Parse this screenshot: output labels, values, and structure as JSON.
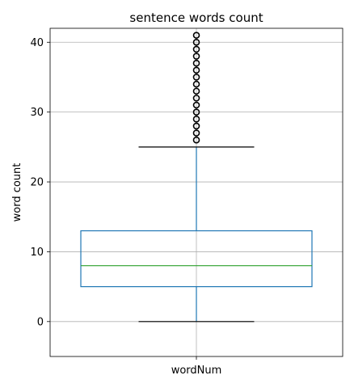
{
  "chart_data": {
    "type": "box",
    "title": "sentence words count",
    "xlabel": "",
    "ylabel": "word count",
    "categories": [
      "wordNum"
    ],
    "ylim": [
      -5,
      42
    ],
    "yticks": [
      0,
      10,
      20,
      30,
      40
    ],
    "grid": true,
    "boxes": [
      {
        "name": "wordNum",
        "whislo": 0,
        "q1": 5,
        "med": 8,
        "q3": 13,
        "whishi": 25,
        "fliers": [
          26,
          27,
          28,
          29,
          30,
          31,
          32,
          33,
          34,
          35,
          36,
          37,
          38,
          39,
          40,
          41
        ]
      }
    ],
    "colors": {
      "box": "#1f77b4",
      "median": "#2ca02c",
      "cap": "#000000",
      "flier": "#000000"
    }
  }
}
